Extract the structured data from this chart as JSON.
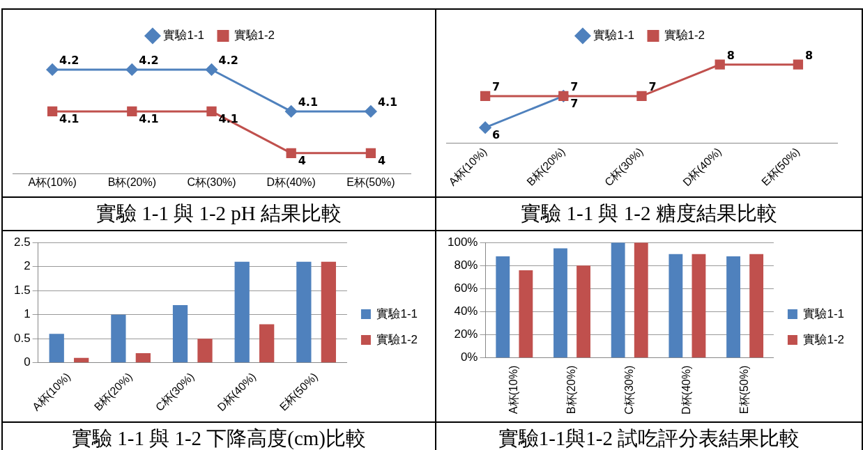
{
  "chart_data": [
    {
      "type": "line",
      "title": "實驗 1-1 與 1-2 pH 結果比較",
      "categories": [
        "A杯(10%)",
        "B杯(20%)",
        "C杯(30%)",
        "D杯(40%)",
        "E杯(50%)"
      ],
      "grid": false,
      "legend": "top",
      "data_labels": true,
      "tick_labels": "x",
      "series": [
        {
          "name": "實驗1-1",
          "color": "#4f81bd",
          "marker": "diamond",
          "values": [
            4.2,
            4.2,
            4.2,
            4.1,
            4.1
          ]
        },
        {
          "name": "實驗1-2",
          "color": "#c0504d",
          "marker": "square",
          "values": [
            4.1,
            4.1,
            4.1,
            4,
            4
          ]
        }
      ]
    },
    {
      "type": "line",
      "title": "實驗 1-1 與 1-2 糖度結果比較",
      "categories": [
        "A杯(10%)",
        "B杯(20%)",
        "C杯(30%)",
        "D杯(40%)",
        "E杯(50%)"
      ],
      "grid": false,
      "legend": "top",
      "data_labels": true,
      "tick_labels": "x",
      "series": [
        {
          "name": "實驗1-1",
          "color": "#4f81bd",
          "marker": "diamond",
          "values": [
            6,
            7,
            null,
            null,
            null
          ]
        },
        {
          "name": "實驗1-2",
          "color": "#c0504d",
          "marker": "square",
          "values": [
            7,
            7,
            7,
            8,
            8
          ]
        }
      ]
    },
    {
      "type": "bar",
      "title": "實驗 1-1 與 1-2 下降高度(cm)比較",
      "categories": [
        "A杯(10%)",
        "B杯(20%)",
        "C杯(30%)",
        "D杯(40%)",
        "E杯(50%)"
      ],
      "ylim": [
        0,
        2.5
      ],
      "yticks": [
        0,
        0.5,
        1,
        1.5,
        2,
        2.5
      ],
      "grid": "y",
      "legend": "right",
      "series": [
        {
          "name": "實驗1-1",
          "color": "#4f81bd",
          "values": [
            0.6,
            1.0,
            1.2,
            2.1,
            2.1
          ]
        },
        {
          "name": "實驗1-2",
          "color": "#c0504d",
          "values": [
            0.1,
            0.2,
            0.5,
            0.8,
            2.1
          ]
        }
      ]
    },
    {
      "type": "bar",
      "title": "實驗1-1與1-2 試吃評分表結果比較",
      "categories": [
        "A杯(10%)",
        "B杯(20%)",
        "C杯(30%)",
        "D杯(40%)",
        "E杯(50%)"
      ],
      "ylim": [
        0,
        100
      ],
      "yticks": [
        {
          "value": 0,
          "label": "0%"
        },
        {
          "value": 20,
          "label": "20%"
        },
        {
          "value": 40,
          "label": "40%"
        },
        {
          "value": 60,
          "label": "60%"
        },
        {
          "value": 80,
          "label": "80%"
        },
        {
          "value": 100,
          "label": "100%"
        }
      ],
      "grid": "y",
      "legend": "right",
      "series": [
        {
          "name": "實驗1-1",
          "color": "#4f81bd",
          "values": [
            88,
            95,
            100,
            90,
            88
          ]
        },
        {
          "name": "實驗1-2",
          "color": "#c0504d",
          "values": [
            76,
            80,
            100,
            90,
            90
          ]
        }
      ]
    }
  ]
}
